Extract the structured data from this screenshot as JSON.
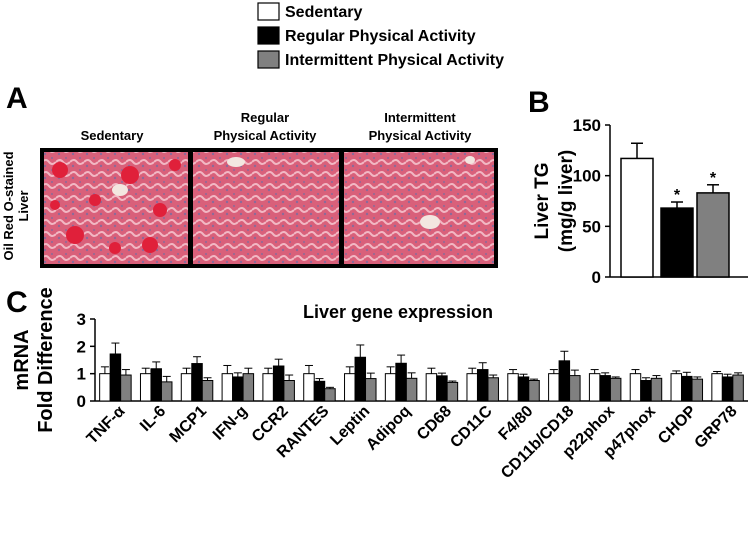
{
  "legend_title": null,
  "panel_a": {
    "panel_label": "A",
    "row_label": [
      "Oil Red O-stained",
      "Liver"
    ],
    "columns": [
      [
        "Sedentary"
      ],
      [
        "Regular",
        "Physical Activity"
      ],
      [
        "Intermittent",
        "Physical Activity"
      ]
    ]
  },
  "chart_data": [
    {
      "type": "bar",
      "panel_label": "B",
      "ylabel": [
        "Liver TG",
        "(mg/g liver)"
      ],
      "values": [
        117,
        68,
        83
      ],
      "errors": [
        15,
        6,
        8
      ],
      "markers": [
        null,
        "*",
        "*"
      ],
      "colors": [
        "#ffffff",
        "#000000",
        "#808080"
      ],
      "ylim": [
        0,
        150
      ],
      "yticks": [
        0,
        50,
        100,
        150
      ]
    },
    {
      "type": "grouped_bar",
      "panel_label": "C",
      "title": "Liver gene expression",
      "ylabel": [
        "mRNA",
        "Fold Difference"
      ],
      "categories": [
        "TNF-α",
        "IL-6",
        "MCP1",
        "IFN-g",
        "CCR2",
        "RANTES",
        "Leptin",
        "Adipoq",
        "CD68",
        "CD11C",
        "F4/80",
        "CD11b/CD18",
        "p22phox",
        "p47phox",
        "CHOP",
        "GRP78"
      ],
      "series": [
        {
          "name": "Sedentary",
          "color": "#ffffff",
          "values": [
            1,
            1,
            1,
            1,
            1,
            1,
            1,
            1,
            1,
            1,
            1,
            1,
            1,
            1,
            1,
            1
          ],
          "errors": [
            0.25,
            0.2,
            0.2,
            0.3,
            0.2,
            0.3,
            0.25,
            0.25,
            0.2,
            0.2,
            0.15,
            0.15,
            0.15,
            0.15,
            0.1,
            0.08
          ]
        },
        {
          "name": "Regular Physical Activity",
          "color": "#000000",
          "values": [
            1.72,
            1.18,
            1.37,
            0.88,
            1.28,
            0.72,
            1.6,
            1.38,
            0.92,
            1.15,
            0.88,
            1.47,
            0.93,
            0.75,
            0.9,
            0.88
          ],
          "errors": [
            0.4,
            0.25,
            0.25,
            0.15,
            0.25,
            0.1,
            0.45,
            0.3,
            0.1,
            0.25,
            0.1,
            0.35,
            0.1,
            0.1,
            0.15,
            0.1
          ]
        },
        {
          "name": "Intermittent Physical Activity",
          "color": "#808080",
          "values": [
            0.95,
            0.7,
            0.75,
            1.0,
            0.75,
            0.45,
            0.82,
            0.83,
            0.68,
            0.85,
            0.75,
            0.93,
            0.83,
            0.83,
            0.8,
            0.95
          ],
          "errors": [
            0.2,
            0.2,
            0.1,
            0.2,
            0.2,
            0.05,
            0.2,
            0.2,
            0.05,
            0.1,
            0.05,
            0.2,
            0.05,
            0.1,
            0.08,
            0.08
          ]
        }
      ],
      "ylim": [
        0,
        3
      ],
      "yticks": [
        0,
        1,
        2,
        3
      ]
    }
  ]
}
